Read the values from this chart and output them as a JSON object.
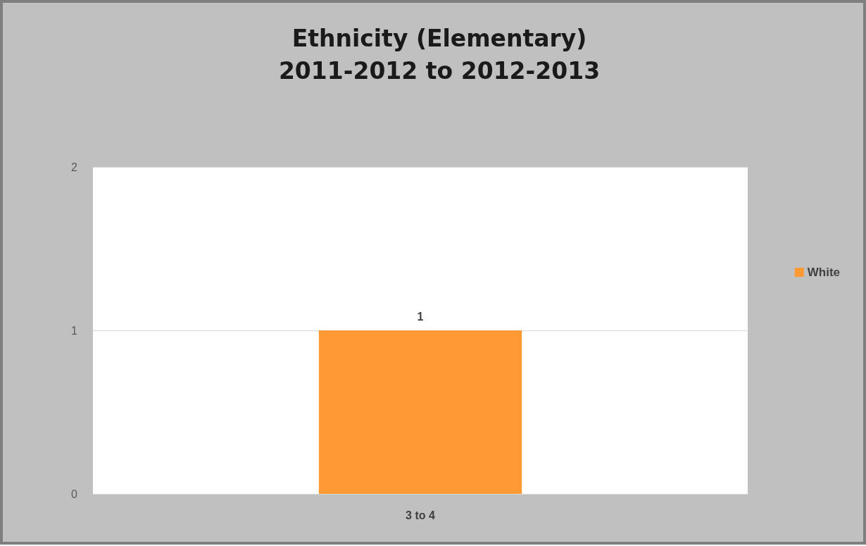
{
  "chart_data": {
    "type": "bar",
    "title": "Ethnicity (Elementary)\n2011-2012 to 2012-2013",
    "categories": [
      "3 to 4"
    ],
    "series": [
      {
        "name": "White",
        "color": "#ff9933",
        "values": [
          1
        ]
      }
    ],
    "ylim": [
      0,
      2
    ],
    "yticks": [
      0,
      1,
      2
    ],
    "grid": "y",
    "legend": "right",
    "data_labels": true
  }
}
